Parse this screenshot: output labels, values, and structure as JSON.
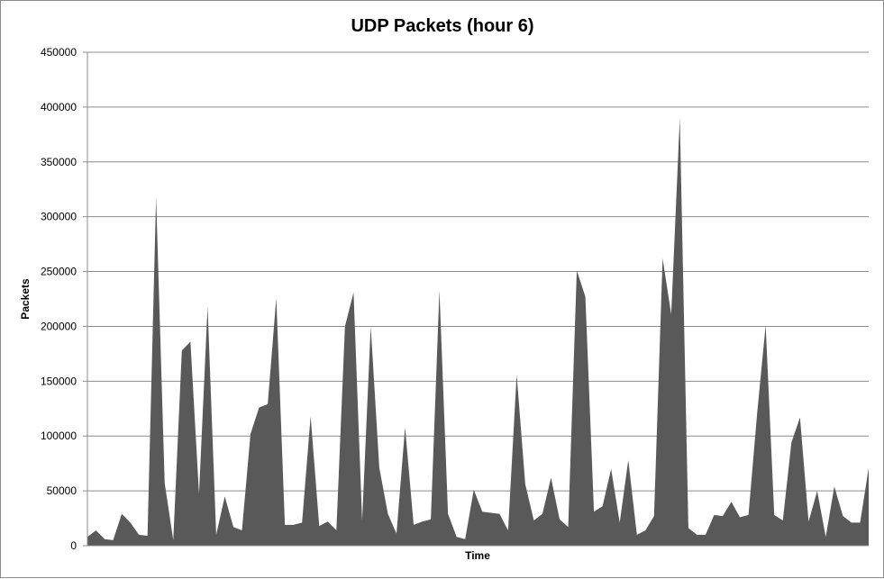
{
  "chart_data": {
    "type": "area",
    "title": "UDP Packets (hour 6)",
    "xlabel": "Time",
    "ylabel": "Packets",
    "ylim": [
      0,
      450000
    ],
    "yticks": [
      "0",
      "50000",
      "100000",
      "150000",
      "200000",
      "250000",
      "300000",
      "350000",
      "400000",
      "450000"
    ],
    "grid": true,
    "legend": "none",
    "colors": {
      "fill": "#595959",
      "grid": "#8c8c8c",
      "axis": "#8c8c8c",
      "frame": "#8c8c8c"
    },
    "series": [
      {
        "values": [
          8000,
          14000,
          6000,
          5000,
          29000,
          21000,
          10000,
          9000,
          318000,
          57000,
          5000,
          178000,
          186000,
          47000,
          218000,
          10000,
          45000,
          17000,
          14000,
          102000,
          126000,
          129000,
          226000,
          19000,
          19000,
          21000,
          118000,
          18000,
          22000,
          14000,
          200000,
          231000,
          23000,
          200000,
          71000,
          29000,
          11000,
          108000,
          19000,
          22000,
          24000,
          233000,
          29000,
          8000,
          6000,
          51000,
          31000,
          30000,
          29000,
          14000,
          156000,
          56000,
          23000,
          29000,
          62000,
          24000,
          17000,
          251000,
          227000,
          31000,
          36000,
          70000,
          21000,
          78000,
          10000,
          14000,
          27000,
          262000,
          211000,
          390000,
          16000,
          10000,
          10000,
          28000,
          27000,
          40000,
          26000,
          28000,
          120000,
          201000,
          28000,
          23000,
          94000,
          117000,
          22000,
          50000,
          8000,
          54000,
          27000,
          21000,
          21000,
          71000
        ]
      }
    ]
  }
}
